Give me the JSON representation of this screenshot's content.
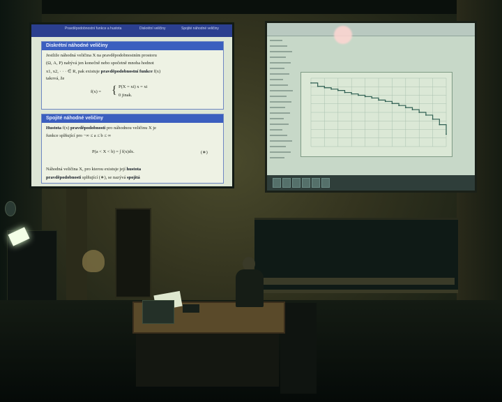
{
  "left_slide": {
    "header_left": "Pravděpodobnostní funkce a hustota",
    "header_mid": "Diskrétní veličiny",
    "header_right": "Spojité náhodné veličiny",
    "block1": {
      "title": "Diskrétní náhodné veličiny",
      "line1": "Jestliže náhodná veličina X na pravděpodobnostním prostoru",
      "line2": "(Ω, A, P) nabývá jen konečně nebo spočetně mnoha hodnot",
      "line3": "x1, x2, · · · ∈ R, pak existuje",
      "line3_bold": "pravděpodobnostní funkce",
      "line3_end": "f(x)",
      "line4": "taková, že",
      "formula_lhs": "f(x) =",
      "case1": "P(X = xi)    x = xi",
      "case2": "0                jinak."
    },
    "block2": {
      "title": "Spojité náhodné veličiny",
      "line1_bold": "Hustota",
      "line1": "f(x)",
      "line1_bold2": "pravděpodobnosti",
      "line1_end": "pro náhodnou veličinu X je",
      "line2": "funkce splňující pro −∞ ≤ a ≤ b ≤ ∞",
      "formula": "P(a < X < b) = ∫ f(x)dx.",
      "formula_tag": "(∗)",
      "line3": "Náhodná veličina X, pro kterou existuje její",
      "line3_bold": "hustota",
      "line4_bold": "pravděpodobnosti",
      "line4": "splňující (∗), se nazývá",
      "line4_bold2": "spojitá"
    }
  },
  "right_screen": {
    "plot": {
      "type": "line",
      "x": [
        0,
        1,
        2,
        3,
        4,
        5,
        6,
        7,
        8,
        9,
        10,
        11,
        12,
        13,
        14,
        15,
        16,
        17,
        18,
        19,
        20
      ],
      "values": [
        0.93,
        0.88,
        0.86,
        0.84,
        0.82,
        0.79,
        0.77,
        0.75,
        0.73,
        0.71,
        0.68,
        0.66,
        0.63,
        0.6,
        0.57,
        0.54,
        0.5,
        0.46,
        0.4,
        0.32,
        0.18
      ],
      "ylim": [
        0,
        1
      ],
      "grid": true,
      "line_color": "#2f5f52"
    }
  },
  "colors": {
    "beamer_blue": "#3b5fbf",
    "slide_bg": "#dde6d5",
    "screen_bg": "#c7d8c8"
  }
}
